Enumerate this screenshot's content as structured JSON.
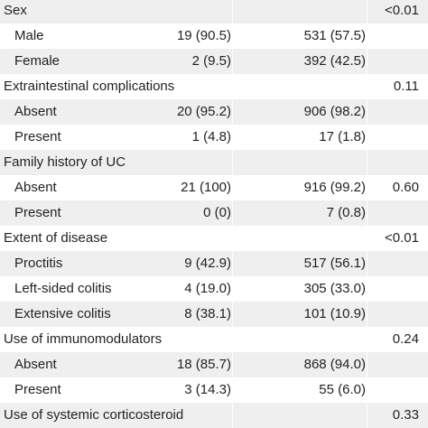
{
  "rows": [
    {
      "label": "Sex",
      "g1": "",
      "g2": "",
      "p": "<0.01",
      "kind": "header",
      "shaded": true
    },
    {
      "label": "Male",
      "g1": "19 (90.5)",
      "g2": "531 (57.5)",
      "p": "",
      "kind": "sub",
      "shaded": false
    },
    {
      "label": "Female",
      "g1": "2 (9.5)",
      "g2": "392 (42.5)",
      "p": "",
      "kind": "sub",
      "shaded": true
    },
    {
      "label": "Extraintestinal complications",
      "g1": "",
      "g2": "",
      "p": "0.11",
      "kind": "header",
      "shaded": false
    },
    {
      "label": "Absent",
      "g1": "20 (95.2)",
      "g2": "906 (98.2)",
      "p": "",
      "kind": "sub",
      "shaded": true
    },
    {
      "label": "Present",
      "g1": "1 (4.8)",
      "g2": "17 (1.8)",
      "p": "",
      "kind": "sub",
      "shaded": false
    },
    {
      "label": "Family history of UC",
      "g1": "",
      "g2": "",
      "p": "",
      "kind": "header",
      "shaded": true
    },
    {
      "label": "Absent",
      "g1": "21 (100)",
      "g2": "916 (99.2)",
      "p": "0.60",
      "kind": "sub",
      "shaded": false
    },
    {
      "label": "Present",
      "g1": "0 (0)",
      "g2": "7 (0.8)",
      "p": "",
      "kind": "sub",
      "shaded": true
    },
    {
      "label": "Extent of disease",
      "g1": "",
      "g2": "",
      "p": "<0.01",
      "kind": "header",
      "shaded": false
    },
    {
      "label": "Proctitis",
      "g1": "9 (42.9)",
      "g2": "517 (56.1)",
      "p": "",
      "kind": "sub",
      "shaded": true
    },
    {
      "label": "Left-sided colitis",
      "g1": "4 (19.0)",
      "g2": "305 (33.0)",
      "p": "",
      "kind": "sub",
      "shaded": false
    },
    {
      "label": "Extensive colitis",
      "g1": "8 (38.1)",
      "g2": "101 (10.9)",
      "p": "",
      "kind": "sub",
      "shaded": true
    },
    {
      "label": "Use of immunomodulators",
      "g1": "",
      "g2": "",
      "p": "0.24",
      "kind": "header",
      "shaded": false
    },
    {
      "label": "Absent",
      "g1": "18 (85.7)",
      "g2": "868 (94.0)",
      "p": "",
      "kind": "sub",
      "shaded": true
    },
    {
      "label": "Present",
      "g1": "3 (14.3)",
      "g2": "55 (6.0)",
      "p": "",
      "kind": "sub",
      "shaded": false
    },
    {
      "label": "Use of systemic corticosteroid",
      "g1": "",
      "g2": "",
      "p": "0.33",
      "kind": "header",
      "shaded": true
    }
  ]
}
